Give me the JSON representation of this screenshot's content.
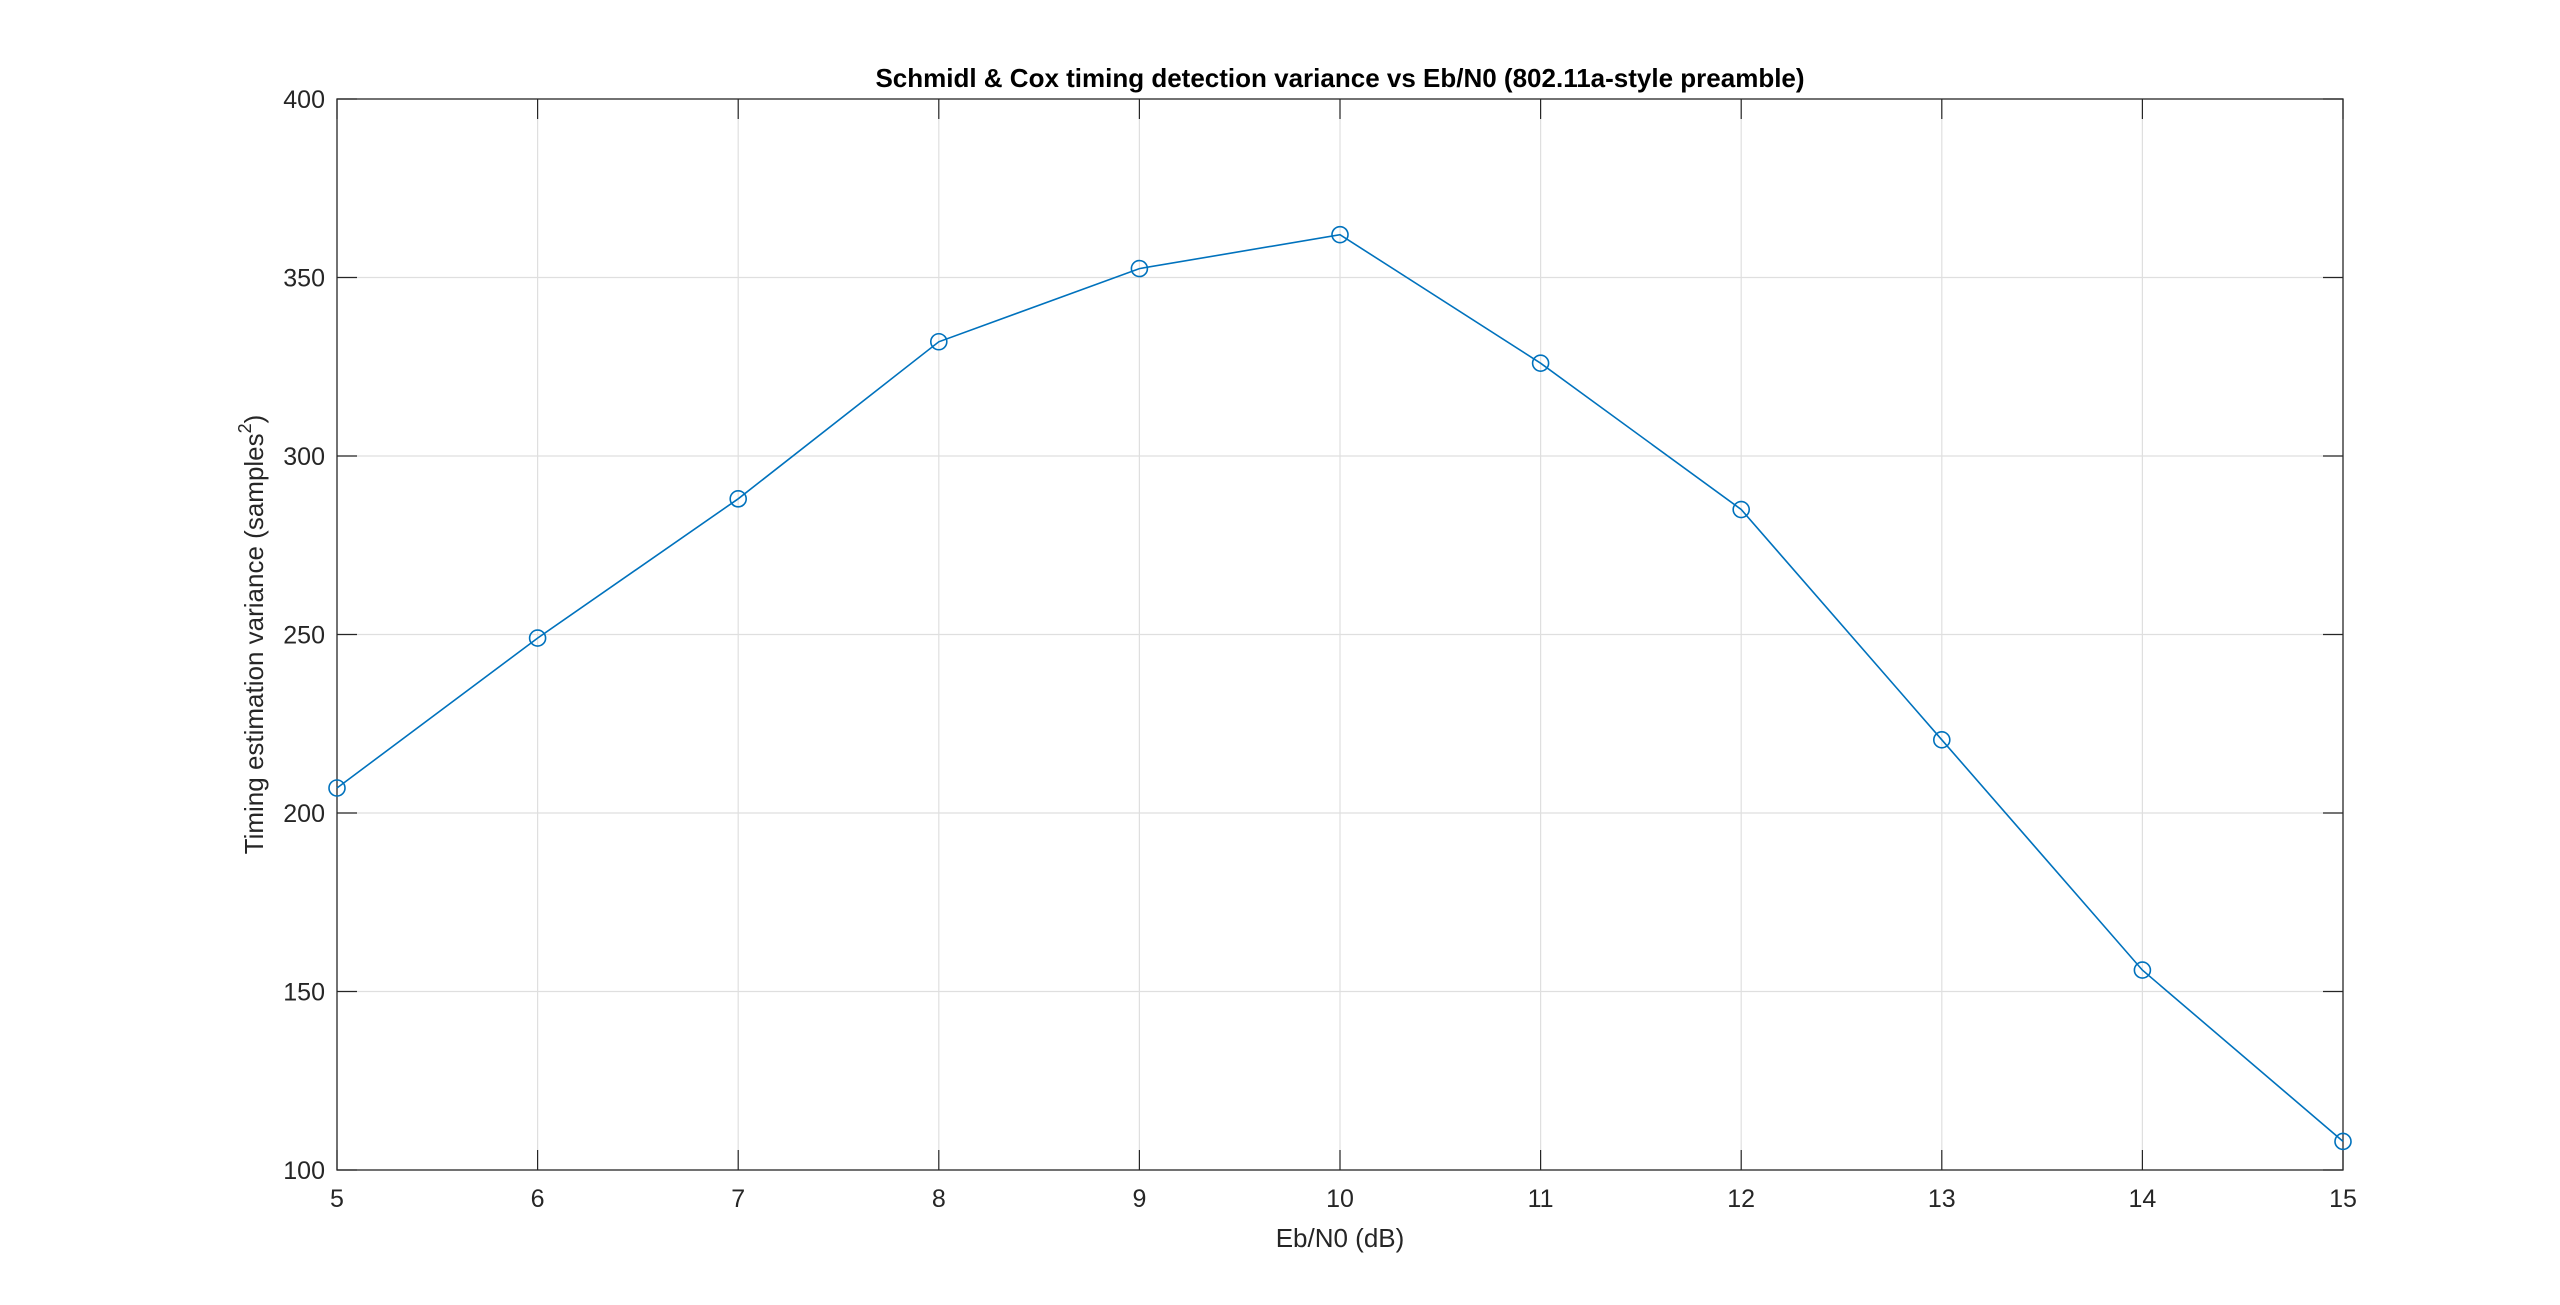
{
  "chart_data": {
    "type": "line",
    "title": "Schmidl & Cox timing detection variance vs Eb/N0 (802.11a-style preamble)",
    "xlabel": "Eb/N0 (dB)",
    "ylabel_main": "Timing estimation variance (samples",
    "ylabel_sup": "2",
    "ylabel_close": ")",
    "xlim": [
      5,
      15
    ],
    "ylim": [
      100,
      400
    ],
    "xticks": [
      5,
      6,
      7,
      8,
      9,
      10,
      11,
      12,
      13,
      14,
      15
    ],
    "yticks": [
      100,
      150,
      200,
      250,
      300,
      350,
      400
    ],
    "grid": true,
    "series": [
      {
        "color": "#0072BD",
        "marker": "circle",
        "x": [
          5,
          6,
          7,
          8,
          9,
          10,
          11,
          12,
          13,
          14,
          15
        ],
        "y": [
          207,
          249,
          288,
          332,
          352.5,
          362,
          326,
          285,
          220.5,
          156,
          108
        ]
      }
    ]
  }
}
